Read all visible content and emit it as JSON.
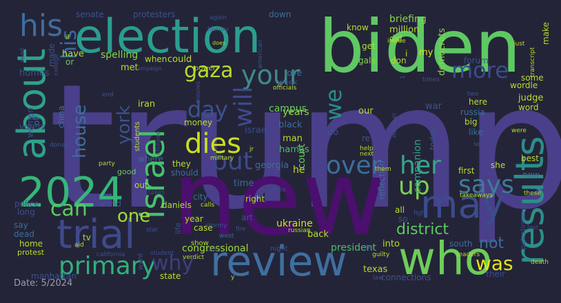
{
  "caption": "Date: 5/2024",
  "palette": {
    "background": "#242438",
    "deep_purple": "#440154",
    "indigo": "#3b4c8c",
    "blue": "#31688e",
    "teal": "#22a884",
    "green": "#52c569",
    "lime": "#b5de2b",
    "yellow": "#fde725"
  },
  "words": {
    "trump": "trump",
    "new": "new",
    "biden": "biden",
    "election": "election",
    "review": "review",
    "who": "who",
    "israel": "israel",
    "2024": "2024",
    "about": "about",
    "results": "results",
    "trial": "trial",
    "primary": "primary",
    "may": "may",
    "his": "his",
    "gaza": "gaza",
    "your": "your",
    "more": "more",
    "dies": "dies",
    "day": "day",
    "over": "over",
    "her": "her",
    "says": "says",
    "up": "up",
    "can": "can",
    "one": "one",
    "was": "was",
    "why": "why",
    "will": "will",
    "we": "we",
    "but": "but",
    "house": "house",
    "york": "york",
    "district": "district",
    "not": "not",
    "congressional": "congressional",
    "ukraine": "ukraine",
    "president": "president",
    "campus": "campus",
    "years": "years",
    "black": "black",
    "hamas": "hamas",
    "man": "man",
    "israeli": "israeli",
    "court": "court",
    "briefing": "briefing",
    "million": "million",
    "democrats": "democrats",
    "know": "know",
    "did": "did",
    "get": "get",
    "don": "don",
    "gala": "gala",
    "my": "my",
    "protesters": "protesters",
    "senate": "senate",
    "spelling": "spelling",
    "have": "have",
    "or": "or",
    "made": "made",
    "homes": "homes",
    "met": "met",
    "when": "when",
    "could": "could",
    "power": "power",
    "iran": "iran",
    "china": "china",
    "women": "women",
    "off": "off",
    "voters": "voters",
    "money": "money",
    "students": "students",
    "donald": "donald",
    "where": "where",
    "they": "they",
    "should": "should",
    "georgia": "georgia",
    "he": "he",
    "time": "time",
    "re": "re",
    "do": "do",
    "companion": "companion",
    "police": "police",
    "long": "long",
    "world": "world",
    "out": "out",
    "daniels": "daniels",
    "city": "city",
    "year": "year",
    "case": "case",
    "show": "show",
    "right": "right",
    "art": "art",
    "back": "back",
    "say": "say",
    "dead": "dead",
    "home": "home",
    "protest": "protest",
    "tv": "tv",
    "aid": "aid",
    "california": "california",
    "manhattan": "manhattan",
    "state": "state",
    "want": "want",
    "life": "life",
    "verdict": "verdict",
    "texas": "texas",
    "connections": "connections",
    "into": "into",
    "south": "south",
    "their": "their",
    "death": "death",
    "first": "first",
    "she": "she",
    "now": "now",
    "best": "best",
    "judge": "judge",
    "word": "word",
    "wordle": "wordle",
    "some": "some",
    "here": "here",
    "russia": "russia",
    "big": "big",
    "like": "like",
    "war": "war",
    "our": "our",
    "forum": "forum",
    "all": "all",
    "so": "so",
    "guilty": "guilty",
    "white": "white",
    "calls": "calls",
    "west": "west",
    "fire": "fire",
    "night": "night",
    "russian": "russian",
    "military": "military",
    "party": "party",
    "good": "good",
    "help": "help",
    "next": "next",
    "week": "week",
    "love": "love",
    "officials": "officials",
    "movies": "movies",
    "history": "history",
    "does": "does",
    "again": "again",
    "down": "down",
    "just": "just",
    "transcript": "transcript",
    "make": "make",
    "inside": "inside",
    "times": "times",
    "two": "two",
    "takeaways": "takeaways",
    "these": "these",
    "last": "last",
    "leaders": "leaders",
    "palestinian": "palestinian",
    "were": "were",
    "see": "see",
    "today": "today",
    "stormy": "stormy",
    "star": "star",
    "takes": "takes",
    "end": "end",
    "if": "if",
    "read": "read",
    "college": "college",
    "campaign": "campaign",
    "chinese": "chinese",
    "them": "them",
    "fight": "fight",
    "be": "be",
    "michael": "michael",
    "jr": "jr",
    "000": "000",
    "student": "student",
    "reflection": "reflection",
    "y": "y",
    "law": "law",
    "i": "i",
    "1": "1",
    "american": "american"
  }
}
